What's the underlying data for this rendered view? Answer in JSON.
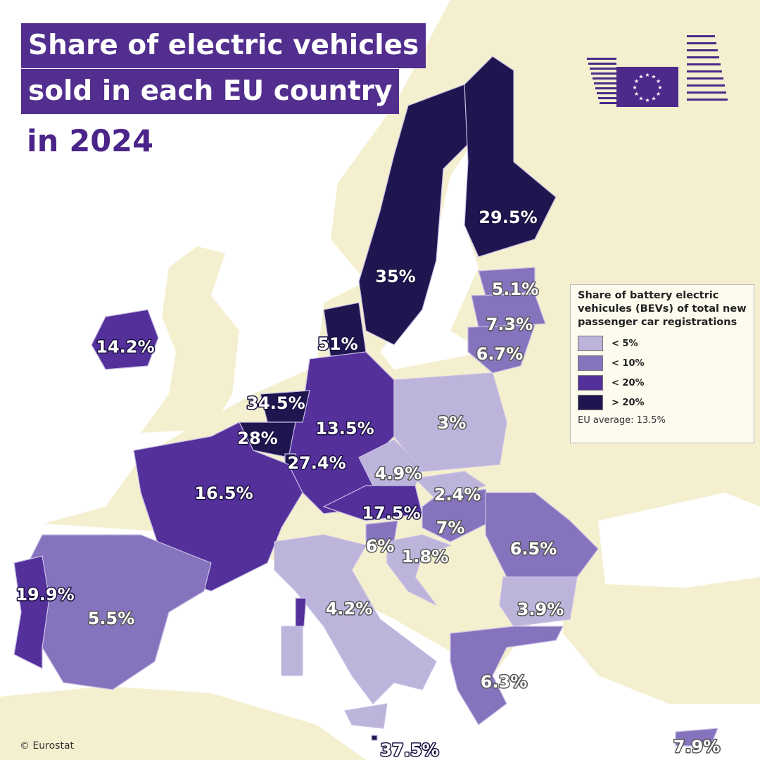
{
  "title": {
    "line1": "Share of electric vehicles",
    "line2": "sold in each EU country",
    "line3": "in 2024"
  },
  "legend": {
    "title": "Share of battery electric vehicules (BEVs) of total new passenger car registrations",
    "bins": [
      {
        "label": "< 5%",
        "color": "#bdb4db",
        "max": 5
      },
      {
        "label": "< 10%",
        "color": "#8573bd",
        "max": 10
      },
      {
        "label": "< 20%",
        "color": "#54309b",
        "max": 20
      },
      {
        "label": "> 20%",
        "color": "#1f1650",
        "max": 1000
      }
    ],
    "average": "EU average: 13.5%"
  },
  "colors": {
    "sea": "#ffffff",
    "non_eu_land": "#f4efcf",
    "title_bg": "#522e8f",
    "border": "#c8bfe6"
  },
  "values": {
    "ireland": "14.2%",
    "denmark": "51%",
    "sweden": "35%",
    "finland": "29.5%",
    "estonia": "5.1%",
    "latvia": "7.3%",
    "lithuania": "6.7%",
    "netherlands": "34.5%",
    "belgium": "28%",
    "luxembourg": "27.4%",
    "germany": "13.5%",
    "poland": "3%",
    "czechia": "4.9%",
    "slovakia": "2.4%",
    "austria": "17.5%",
    "hungary": "7%",
    "slovenia": "6%",
    "croatia": "1.8%",
    "romania": "6.5%",
    "bulgaria": "3.9%",
    "greece": "6.3%",
    "cyprus": "7.9%",
    "malta": "37.5%",
    "italy": "4.2%",
    "france": "16.5%",
    "spain": "5.5%",
    "portugal": "19.9%"
  },
  "logo": {
    "icon": "european-commission-logo"
  },
  "credit": "© Eurostat"
}
